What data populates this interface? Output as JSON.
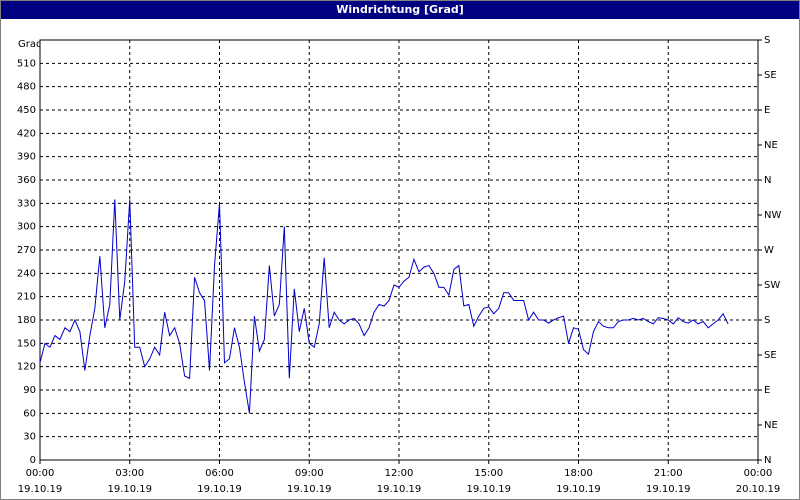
{
  "chart_data": {
    "type": "line",
    "title": "Windrichtung [Grad]",
    "y_label": "Grad",
    "x": [
      0,
      10,
      20,
      30,
      40,
      50,
      60,
      70,
      80,
      90,
      100,
      110,
      120,
      130,
      140,
      150,
      160,
      170,
      180,
      190,
      200,
      210,
      220,
      230,
      240,
      250,
      260,
      270,
      280,
      290,
      300,
      310,
      320,
      330,
      340,
      350,
      360,
      370,
      380,
      390,
      400,
      410,
      420,
      430,
      440,
      450,
      460,
      470,
      480,
      490,
      500,
      510,
      520,
      530,
      540,
      550,
      560,
      570,
      580,
      590,
      600,
      610,
      620,
      630,
      640,
      650,
      660,
      670,
      680,
      690,
      700,
      710,
      720,
      730,
      740,
      750,
      760,
      770,
      780,
      790,
      800,
      810,
      820,
      830,
      840,
      850,
      860,
      870,
      880,
      890,
      900,
      910,
      920,
      930,
      940,
      950,
      960,
      970,
      980,
      990,
      1000,
      1010,
      1020,
      1030,
      1040,
      1050,
      1060,
      1070,
      1080,
      1090,
      1100,
      1110,
      1120,
      1130,
      1140,
      1150,
      1160,
      1170,
      1180,
      1190,
      1200,
      1210,
      1220,
      1230,
      1240,
      1250,
      1260,
      1270,
      1280,
      1290,
      1300,
      1310,
      1320,
      1330,
      1340,
      1350,
      1360,
      1370,
      1380
    ],
    "series": [
      {
        "color": "#0000c8",
        "values": [
          125,
          150,
          145,
          160,
          155,
          170,
          165,
          180,
          165,
          115,
          160,
          195,
          262,
          170,
          200,
          335,
          180,
          230,
          335,
          145,
          145,
          120,
          130,
          145,
          135,
          190,
          160,
          170,
          150,
          108,
          105,
          235,
          215,
          205,
          115,
          250,
          330,
          125,
          130,
          170,
          145,
          100,
          60,
          185,
          140,
          155,
          250,
          185,
          200,
          300,
          105,
          220,
          165,
          195,
          150,
          145,
          175,
          260,
          170,
          190,
          180,
          175,
          180,
          182,
          175,
          160,
          170,
          190,
          200,
          198,
          205,
          225,
          222,
          230,
          235,
          258,
          242,
          248,
          250,
          240,
          222,
          222,
          212,
          245,
          250,
          198,
          200,
          172,
          185,
          195,
          197,
          188,
          195,
          215,
          215,
          205,
          205,
          205,
          180,
          190,
          180,
          180,
          176,
          180,
          183,
          185,
          150,
          170,
          168,
          142,
          136,
          165,
          178,
          172,
          170,
          170,
          178,
          180,
          180,
          182,
          180,
          182,
          178,
          175,
          183,
          182,
          180,
          175,
          183,
          178,
          176,
          180,
          175,
          178,
          170,
          175,
          180,
          188,
          175
        ]
      }
    ],
    "xlim": [
      0,
      1440
    ],
    "xticks": [
      {
        "value": 0,
        "label": "00:00"
      },
      {
        "value": 180,
        "label": "03:00"
      },
      {
        "value": 360,
        "label": "06:00"
      },
      {
        "value": 540,
        "label": "09:00"
      },
      {
        "value": 720,
        "label": "12:00"
      },
      {
        "value": 900,
        "label": "15:00"
      },
      {
        "value": 1080,
        "label": "18:00"
      },
      {
        "value": 1260,
        "label": "21:00"
      },
      {
        "value": 1440,
        "label": "00:00"
      }
    ],
    "xtick_dates": [
      "19.10.19",
      "19.10.19",
      "19.10.19",
      "19.10.19",
      "19.10.19",
      "19.10.19",
      "19.10.19",
      "19.10.19",
      "20.10.19"
    ],
    "ylim": [
      0,
      540
    ],
    "yticks": [
      0,
      30,
      60,
      90,
      120,
      150,
      180,
      210,
      240,
      270,
      300,
      330,
      360,
      390,
      420,
      450,
      480,
      510
    ],
    "y2lim": [
      0,
      540
    ],
    "y2ticks": [
      {
        "value": 0,
        "label": "N"
      },
      {
        "value": 45,
        "label": "NE"
      },
      {
        "value": 90,
        "label": "E"
      },
      {
        "value": 135,
        "label": "SE"
      },
      {
        "value": 180,
        "label": "S"
      },
      {
        "value": 225,
        "label": "SW"
      },
      {
        "value": 270,
        "label": "W"
      },
      {
        "value": 315,
        "label": "NW"
      },
      {
        "value": 360,
        "label": "N"
      },
      {
        "value": 405,
        "label": "NE"
      },
      {
        "value": 450,
        "label": "E"
      },
      {
        "value": 495,
        "label": "SE"
      },
      {
        "value": 540,
        "label": "S"
      }
    ],
    "grid": true
  }
}
